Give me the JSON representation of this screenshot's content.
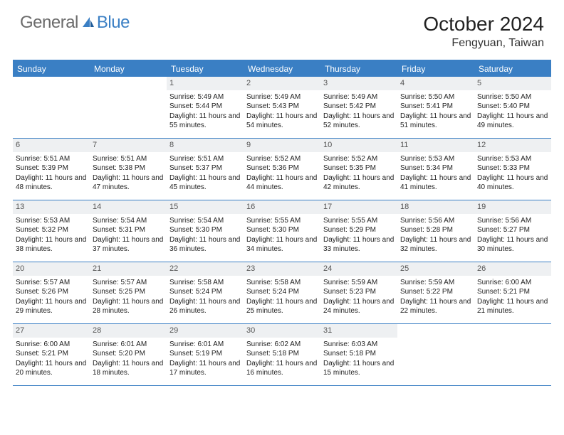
{
  "brand": {
    "part1": "General",
    "part2": "Blue",
    "accent": "#3a7fc4",
    "muted": "#6b6b6b"
  },
  "title": "October 2024",
  "location": "Fengyuan, Taiwan",
  "weekdays": [
    "Sunday",
    "Monday",
    "Tuesday",
    "Wednesday",
    "Thursday",
    "Friday",
    "Saturday"
  ],
  "colors": {
    "header_bg": "#3a7fc4",
    "header_text": "#ffffff",
    "daynum_bg": "#eef0f2",
    "rule": "#3a7fc4",
    "body_text": "#222222"
  },
  "weeks": [
    [
      {
        "n": "",
        "sunrise": "",
        "sunset": "",
        "daylight": ""
      },
      {
        "n": "",
        "sunrise": "",
        "sunset": "",
        "daylight": ""
      },
      {
        "n": "1",
        "sunrise": "Sunrise: 5:49 AM",
        "sunset": "Sunset: 5:44 PM",
        "daylight": "Daylight: 11 hours and 55 minutes."
      },
      {
        "n": "2",
        "sunrise": "Sunrise: 5:49 AM",
        "sunset": "Sunset: 5:43 PM",
        "daylight": "Daylight: 11 hours and 54 minutes."
      },
      {
        "n": "3",
        "sunrise": "Sunrise: 5:49 AM",
        "sunset": "Sunset: 5:42 PM",
        "daylight": "Daylight: 11 hours and 52 minutes."
      },
      {
        "n": "4",
        "sunrise": "Sunrise: 5:50 AM",
        "sunset": "Sunset: 5:41 PM",
        "daylight": "Daylight: 11 hours and 51 minutes."
      },
      {
        "n": "5",
        "sunrise": "Sunrise: 5:50 AM",
        "sunset": "Sunset: 5:40 PM",
        "daylight": "Daylight: 11 hours and 49 minutes."
      }
    ],
    [
      {
        "n": "6",
        "sunrise": "Sunrise: 5:51 AM",
        "sunset": "Sunset: 5:39 PM",
        "daylight": "Daylight: 11 hours and 48 minutes."
      },
      {
        "n": "7",
        "sunrise": "Sunrise: 5:51 AM",
        "sunset": "Sunset: 5:38 PM",
        "daylight": "Daylight: 11 hours and 47 minutes."
      },
      {
        "n": "8",
        "sunrise": "Sunrise: 5:51 AM",
        "sunset": "Sunset: 5:37 PM",
        "daylight": "Daylight: 11 hours and 45 minutes."
      },
      {
        "n": "9",
        "sunrise": "Sunrise: 5:52 AM",
        "sunset": "Sunset: 5:36 PM",
        "daylight": "Daylight: 11 hours and 44 minutes."
      },
      {
        "n": "10",
        "sunrise": "Sunrise: 5:52 AM",
        "sunset": "Sunset: 5:35 PM",
        "daylight": "Daylight: 11 hours and 42 minutes."
      },
      {
        "n": "11",
        "sunrise": "Sunrise: 5:53 AM",
        "sunset": "Sunset: 5:34 PM",
        "daylight": "Daylight: 11 hours and 41 minutes."
      },
      {
        "n": "12",
        "sunrise": "Sunrise: 5:53 AM",
        "sunset": "Sunset: 5:33 PM",
        "daylight": "Daylight: 11 hours and 40 minutes."
      }
    ],
    [
      {
        "n": "13",
        "sunrise": "Sunrise: 5:53 AM",
        "sunset": "Sunset: 5:32 PM",
        "daylight": "Daylight: 11 hours and 38 minutes."
      },
      {
        "n": "14",
        "sunrise": "Sunrise: 5:54 AM",
        "sunset": "Sunset: 5:31 PM",
        "daylight": "Daylight: 11 hours and 37 minutes."
      },
      {
        "n": "15",
        "sunrise": "Sunrise: 5:54 AM",
        "sunset": "Sunset: 5:30 PM",
        "daylight": "Daylight: 11 hours and 36 minutes."
      },
      {
        "n": "16",
        "sunrise": "Sunrise: 5:55 AM",
        "sunset": "Sunset: 5:30 PM",
        "daylight": "Daylight: 11 hours and 34 minutes."
      },
      {
        "n": "17",
        "sunrise": "Sunrise: 5:55 AM",
        "sunset": "Sunset: 5:29 PM",
        "daylight": "Daylight: 11 hours and 33 minutes."
      },
      {
        "n": "18",
        "sunrise": "Sunrise: 5:56 AM",
        "sunset": "Sunset: 5:28 PM",
        "daylight": "Daylight: 11 hours and 32 minutes."
      },
      {
        "n": "19",
        "sunrise": "Sunrise: 5:56 AM",
        "sunset": "Sunset: 5:27 PM",
        "daylight": "Daylight: 11 hours and 30 minutes."
      }
    ],
    [
      {
        "n": "20",
        "sunrise": "Sunrise: 5:57 AM",
        "sunset": "Sunset: 5:26 PM",
        "daylight": "Daylight: 11 hours and 29 minutes."
      },
      {
        "n": "21",
        "sunrise": "Sunrise: 5:57 AM",
        "sunset": "Sunset: 5:25 PM",
        "daylight": "Daylight: 11 hours and 28 minutes."
      },
      {
        "n": "22",
        "sunrise": "Sunrise: 5:58 AM",
        "sunset": "Sunset: 5:24 PM",
        "daylight": "Daylight: 11 hours and 26 minutes."
      },
      {
        "n": "23",
        "sunrise": "Sunrise: 5:58 AM",
        "sunset": "Sunset: 5:24 PM",
        "daylight": "Daylight: 11 hours and 25 minutes."
      },
      {
        "n": "24",
        "sunrise": "Sunrise: 5:59 AM",
        "sunset": "Sunset: 5:23 PM",
        "daylight": "Daylight: 11 hours and 24 minutes."
      },
      {
        "n": "25",
        "sunrise": "Sunrise: 5:59 AM",
        "sunset": "Sunset: 5:22 PM",
        "daylight": "Daylight: 11 hours and 22 minutes."
      },
      {
        "n": "26",
        "sunrise": "Sunrise: 6:00 AM",
        "sunset": "Sunset: 5:21 PM",
        "daylight": "Daylight: 11 hours and 21 minutes."
      }
    ],
    [
      {
        "n": "27",
        "sunrise": "Sunrise: 6:00 AM",
        "sunset": "Sunset: 5:21 PM",
        "daylight": "Daylight: 11 hours and 20 minutes."
      },
      {
        "n": "28",
        "sunrise": "Sunrise: 6:01 AM",
        "sunset": "Sunset: 5:20 PM",
        "daylight": "Daylight: 11 hours and 18 minutes."
      },
      {
        "n": "29",
        "sunrise": "Sunrise: 6:01 AM",
        "sunset": "Sunset: 5:19 PM",
        "daylight": "Daylight: 11 hours and 17 minutes."
      },
      {
        "n": "30",
        "sunrise": "Sunrise: 6:02 AM",
        "sunset": "Sunset: 5:18 PM",
        "daylight": "Daylight: 11 hours and 16 minutes."
      },
      {
        "n": "31",
        "sunrise": "Sunrise: 6:03 AM",
        "sunset": "Sunset: 5:18 PM",
        "daylight": "Daylight: 11 hours and 15 minutes."
      },
      {
        "n": "",
        "sunrise": "",
        "sunset": "",
        "daylight": ""
      },
      {
        "n": "",
        "sunrise": "",
        "sunset": "",
        "daylight": ""
      }
    ]
  ]
}
